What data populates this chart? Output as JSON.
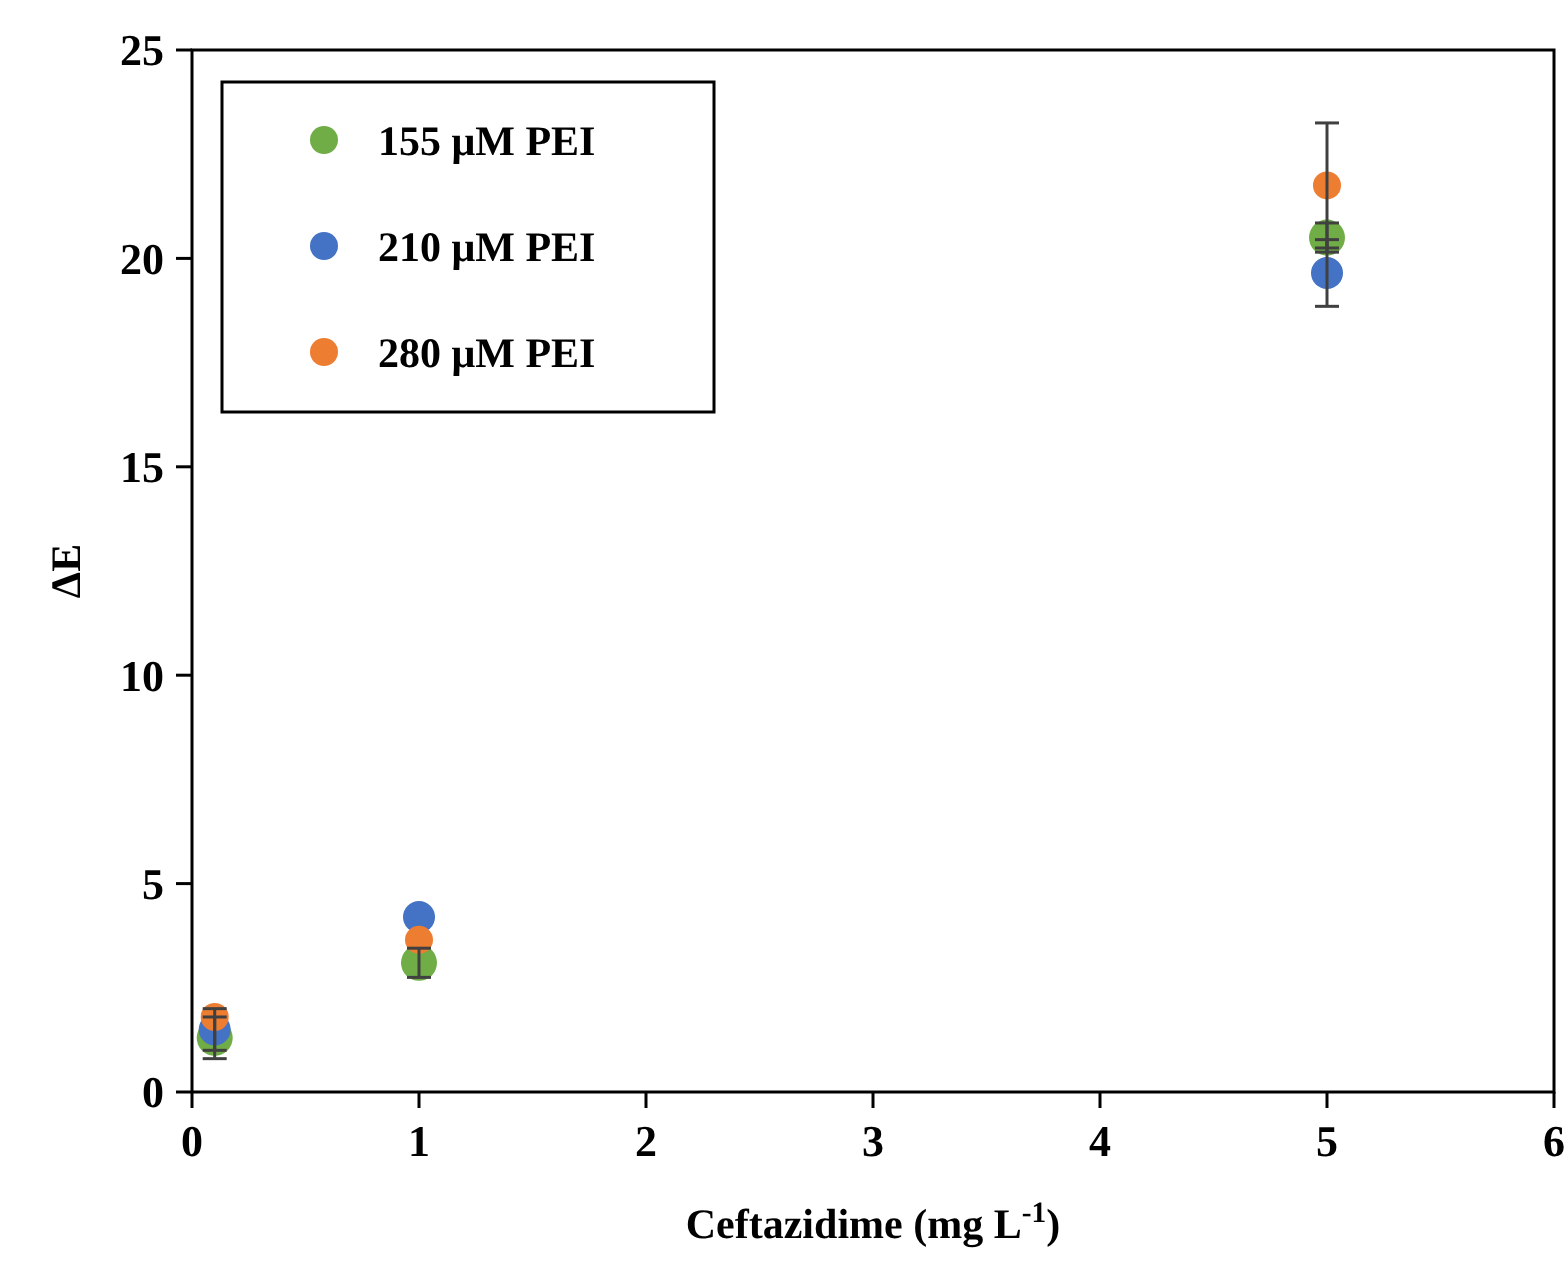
{
  "chart_data": {
    "type": "scatter",
    "xlabel": "Ceftazidime (mg L$^{-1}$)",
    "ylabel": "ΔE",
    "xlim": [
      0,
      6
    ],
    "xticks": [
      0,
      1,
      2,
      3,
      4,
      5,
      6
    ],
    "ylim": [
      0,
      25
    ],
    "yticks": [
      0,
      5,
      10,
      15,
      20,
      25
    ],
    "x": [
      0.1,
      1,
      5
    ],
    "marker": "circle",
    "legend": "top left",
    "grid": false,
    "series": [
      {
        "name": "155 μM PEI",
        "color": "#70ad47",
        "values": [
          1.3,
          3.1,
          20.5
        ],
        "errors": [
          0.5,
          0.35,
          0.35
        ]
      },
      {
        "name": "210 μM PEI",
        "color": "#4472c4",
        "values": [
          1.5,
          4.2,
          19.65
        ],
        "errors": [
          0.5,
          null,
          0.8
        ]
      },
      {
        "name": "280 μM PEI",
        "color": "#ed7d31",
        "values": [
          1.8,
          3.65,
          21.75
        ],
        "errors": [
          null,
          null,
          1.5
        ]
      }
    ]
  }
}
